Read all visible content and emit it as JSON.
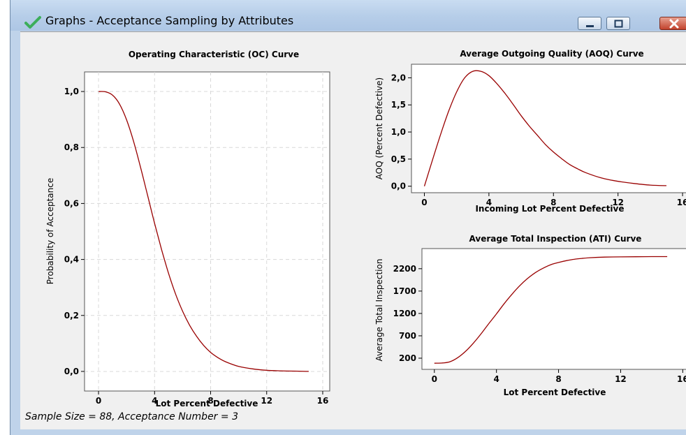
{
  "window": {
    "title": "Graphs - Acceptance Sampling by Attributes",
    "icon": "check-icon",
    "buttons": [
      "minimize-icon",
      "maximize-icon",
      "close-icon"
    ]
  },
  "footer": {
    "note": "Sample Size = 88, Acceptance Number = 3"
  },
  "colors": {
    "curve": "#990000",
    "grid": "#d8d8d8",
    "client_bg": "#f0f0f0",
    "plot_bg": "#ffffff"
  },
  "chart_data": [
    {
      "id": "oc",
      "type": "line",
      "title": "Operating Characteristic (OC) Curve",
      "xlabel": "Lot Percent Defective",
      "ylabel": "Probability of Acceptance",
      "xlim": [
        -1,
        16.5
      ],
      "ylim": [
        -0.07,
        1.07
      ],
      "xticks": [
        0,
        4,
        8,
        12,
        16
      ],
      "xtick_labels": [
        "0",
        "4",
        "8",
        "12",
        "16"
      ],
      "yticks": [
        0.0,
        0.2,
        0.4,
        0.6,
        0.8,
        1.0
      ],
      "ytick_labels": [
        "0,0",
        "0,2",
        "0,4",
        "0,6",
        "0,8",
        "1,0"
      ],
      "grid": true,
      "x": [
        0,
        0.5,
        1,
        1.5,
        2,
        2.5,
        3,
        3.5,
        4,
        4.5,
        5,
        5.5,
        6,
        6.5,
        7,
        7.5,
        8,
        8.5,
        9,
        9.5,
        10,
        11,
        12,
        13,
        14,
        15
      ],
      "y": [
        1.0,
        0.999,
        0.987,
        0.955,
        0.899,
        0.822,
        0.729,
        0.629,
        0.529,
        0.435,
        0.35,
        0.276,
        0.215,
        0.165,
        0.125,
        0.093,
        0.068,
        0.05,
        0.036,
        0.026,
        0.018,
        0.009,
        0.004,
        0.002,
        0.001,
        0.0
      ]
    },
    {
      "id": "aoq",
      "type": "line",
      "title": "Average Outgoing Quality (AOQ) Curve",
      "xlabel": "Incoming Lot Percent Defective",
      "ylabel": "AOQ (Percent Defective)",
      "xlim": [
        -0.8,
        16.3
      ],
      "ylim": [
        -0.12,
        2.25
      ],
      "xticks": [
        0,
        4,
        8,
        12,
        16
      ],
      "xtick_labels": [
        "0",
        "4",
        "8",
        "12",
        "16"
      ],
      "yticks": [
        0.0,
        0.5,
        1.0,
        1.5,
        2.0
      ],
      "ytick_labels": [
        "0,0",
        "0,5",
        "1,0",
        "1,5",
        "2,0"
      ],
      "grid": false,
      "x": [
        0,
        0.5,
        1,
        1.5,
        2,
        2.5,
        3,
        3.5,
        4,
        4.5,
        5,
        5.5,
        6,
        6.5,
        7,
        7.5,
        8,
        8.5,
        9,
        9.5,
        10,
        11,
        12,
        13,
        14,
        15
      ],
      "y": [
        0.0,
        0.48,
        0.95,
        1.38,
        1.74,
        2.0,
        2.12,
        2.12,
        2.04,
        1.89,
        1.71,
        1.51,
        1.3,
        1.11,
        0.94,
        0.77,
        0.63,
        0.51,
        0.4,
        0.32,
        0.25,
        0.15,
        0.09,
        0.05,
        0.02,
        0.01
      ]
    },
    {
      "id": "ati",
      "type": "line",
      "title": "Average Total Inspection (ATI) Curve",
      "xlabel": "Lot Percent Defective",
      "ylabel": "Average Total Inspection",
      "xlim": [
        -0.8,
        16.3
      ],
      "ylim": [
        -50,
        2650
      ],
      "xticks": [
        0,
        4,
        8,
        12,
        16
      ],
      "xtick_labels": [
        "0",
        "4",
        "8",
        "12",
        "16"
      ],
      "yticks": [
        200,
        700,
        1200,
        1700,
        2200
      ],
      "ytick_labels": [
        "200",
        "700",
        "1200",
        "1700",
        "2200"
      ],
      "grid": false,
      "x": [
        0,
        0.5,
        1,
        1.5,
        2,
        2.5,
        3,
        3.5,
        4,
        4.5,
        5,
        5.5,
        6,
        6.5,
        7,
        7.5,
        8,
        8.5,
        9,
        9.5,
        10,
        11,
        12,
        13,
        14,
        15
      ],
      "y": [
        88,
        92,
        120,
        210,
        350,
        530,
        740,
        970,
        1190,
        1420,
        1630,
        1820,
        1980,
        2110,
        2210,
        2290,
        2340,
        2380,
        2410,
        2430,
        2445,
        2460,
        2465,
        2468,
        2470,
        2470
      ]
    }
  ]
}
